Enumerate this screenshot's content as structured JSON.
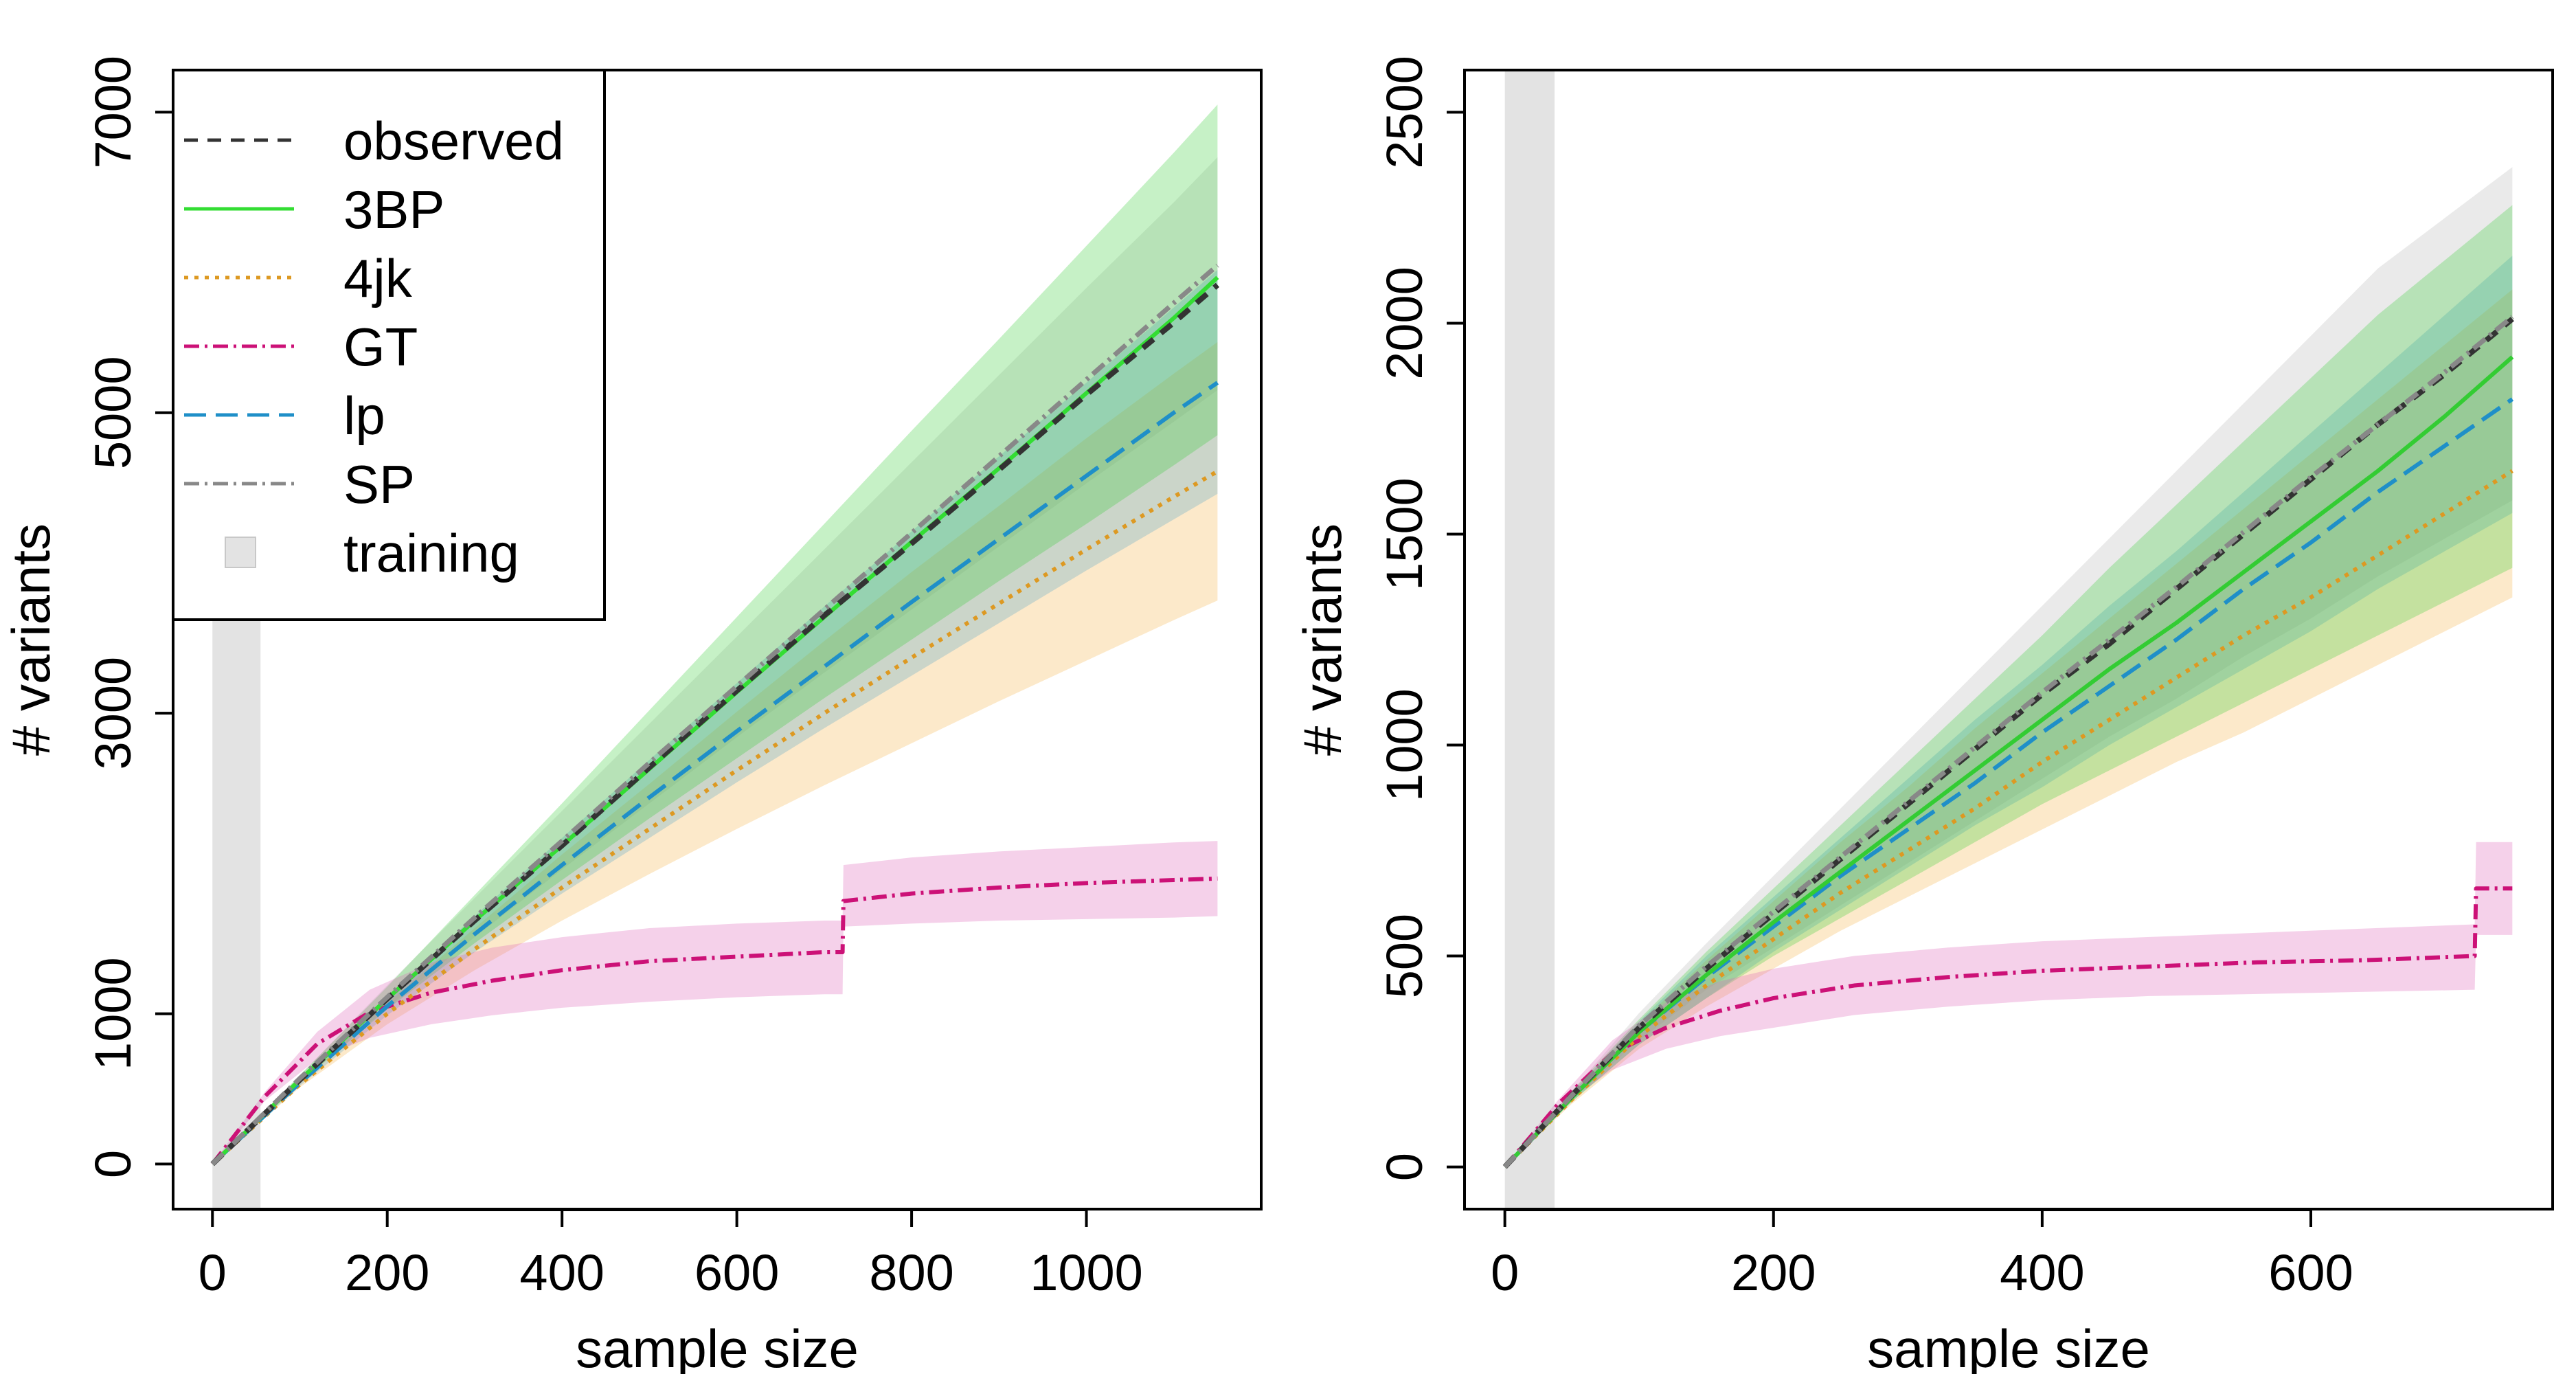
{
  "chart_data": [
    {
      "type": "line",
      "panel": "left",
      "xlabel": "sample size",
      "ylabel": "# variants",
      "xlim": [
        -45,
        1200
      ],
      "ylim": [
        -300,
        7280
      ],
      "xticks": [
        0,
        200,
        400,
        600,
        800,
        1000
      ],
      "yticks": [
        0,
        1000,
        3000,
        5000,
        7000
      ],
      "training_region": [
        0,
        55
      ],
      "x_end": 1150,
      "gt_jump_x": 722,
      "series": [
        {
          "name": "observed",
          "color": "#333333",
          "x": [
            0,
            100,
            200,
            300,
            400,
            500,
            600,
            700,
            800,
            900,
            1000,
            1100,
            1150
          ],
          "y": [
            0,
            560,
            1100,
            1620,
            2120,
            2640,
            3150,
            3650,
            4130,
            4620,
            5120,
            5600,
            5850
          ]
        },
        {
          "name": "3BP",
          "color": "#33dd33",
          "x": [
            0,
            100,
            200,
            300,
            400,
            500,
            600,
            700,
            800,
            900,
            1000,
            1100,
            1150
          ],
          "y": [
            0,
            560,
            1100,
            1620,
            2120,
            2630,
            3140,
            3640,
            4140,
            4630,
            5130,
            5630,
            5900
          ],
          "lower": [
            0,
            540,
            1030,
            1470,
            1890,
            2300,
            2700,
            3100,
            3490,
            3880,
            4260,
            4650,
            4850
          ],
          "upper": [
            0,
            590,
            1180,
            1790,
            2400,
            3020,
            3640,
            4260,
            4880,
            5490,
            6110,
            6730,
            7050
          ]
        },
        {
          "name": "4jk",
          "color": "#dd9922",
          "x": [
            0,
            100,
            200,
            300,
            400,
            500,
            600,
            700,
            800,
            900,
            1000,
            1100,
            1150
          ],
          "y": [
            0,
            530,
            1000,
            1430,
            1840,
            2230,
            2620,
            3000,
            3370,
            3730,
            4090,
            4440,
            4610
          ],
          "lower": [
            0,
            510,
            930,
            1290,
            1620,
            1930,
            2230,
            2520,
            2800,
            3080,
            3350,
            3620,
            3750
          ],
          "upper": [
            0,
            550,
            1070,
            1570,
            2060,
            2530,
            3010,
            3480,
            3940,
            4380,
            4830,
            5260,
            5470
          ]
        },
        {
          "name": "GT",
          "color": "#cc1177",
          "x": [
            0,
            60,
            120,
            180,
            250,
            320,
            400,
            500,
            600,
            700,
            721,
            722,
            800,
            900,
            1000,
            1100,
            1150
          ],
          "y": [
            0,
            450,
            800,
            1010,
            1140,
            1220,
            1290,
            1350,
            1380,
            1410,
            1410,
            1750,
            1800,
            1840,
            1870,
            1890,
            1900
          ],
          "lower": [
            0,
            420,
            700,
            840,
            930,
            990,
            1040,
            1080,
            1110,
            1130,
            1130,
            1580,
            1600,
            1620,
            1630,
            1640,
            1650
          ],
          "upper": [
            0,
            480,
            880,
            1160,
            1340,
            1440,
            1510,
            1570,
            1600,
            1620,
            1620,
            1990,
            2040,
            2080,
            2110,
            2140,
            2150
          ]
        },
        {
          "name": "lp",
          "color": "#1f8fc8",
          "x": [
            0,
            100,
            200,
            300,
            400,
            500,
            600,
            700,
            800,
            900,
            1000,
            1100,
            1150
          ],
          "y": [
            0,
            540,
            1050,
            1530,
            1990,
            2440,
            2880,
            3310,
            3740,
            4160,
            4580,
            5000,
            5200
          ],
          "lower": [
            0,
            520,
            990,
            1410,
            1800,
            2170,
            2540,
            2900,
            3250,
            3600,
            3950,
            4290,
            4460
          ],
          "upper": [
            0,
            560,
            1110,
            1650,
            2170,
            2690,
            3200,
            3710,
            4210,
            4710,
            5200,
            5700,
            5950
          ]
        },
        {
          "name": "SP",
          "color": "#888888",
          "x": [
            0,
            100,
            200,
            300,
            400,
            500,
            600,
            700,
            800,
            900,
            1000,
            1100,
            1150
          ],
          "y": [
            0,
            570,
            1110,
            1640,
            2150,
            2670,
            3180,
            3690,
            4200,
            4710,
            5220,
            5730,
            5980
          ],
          "lower": [
            0,
            540,
            1040,
            1510,
            1960,
            2400,
            2840,
            3270,
            3690,
            4110,
            4530,
            4940,
            5150
          ],
          "upper": [
            0,
            590,
            1190,
            1770,
            2350,
            2930,
            3510,
            4090,
            4670,
            5250,
            5830,
            6400,
            6700
          ]
        }
      ]
    },
    {
      "type": "line",
      "panel": "right",
      "xlabel": "sample size",
      "ylabel": "# variants",
      "xlim": [
        -30,
        780
      ],
      "ylim": [
        -100,
        2600
      ],
      "xticks": [
        0,
        200,
        400,
        600
      ],
      "yticks": [
        0,
        500,
        1000,
        1500,
        2000,
        2500
      ],
      "training_region": [
        0,
        37
      ],
      "x_end": 750,
      "gt_jump_x": 723,
      "series": [
        {
          "name": "observed",
          "color": "#333333",
          "x": [
            0,
            50,
            100,
            150,
            200,
            250,
            300,
            350,
            400,
            450,
            500,
            550,
            600,
            650,
            700,
            750
          ],
          "y": [
            0,
            170,
            330,
            470,
            600,
            730,
            860,
            990,
            1120,
            1240,
            1370,
            1500,
            1630,
            1760,
            1880,
            2010
          ]
        },
        {
          "name": "3BP",
          "color": "#33cc33",
          "x": [
            0,
            50,
            100,
            150,
            200,
            250,
            300,
            350,
            400,
            450,
            500,
            550,
            600,
            650,
            700,
            750
          ],
          "y": [
            0,
            165,
            320,
            455,
            580,
            700,
            820,
            940,
            1060,
            1180,
            1290,
            1410,
            1530,
            1650,
            1780,
            1920
          ],
          "lower": [
            0,
            155,
            290,
            400,
            500,
            590,
            680,
            770,
            860,
            940,
            1020,
            1100,
            1180,
            1260,
            1340,
            1420
          ],
          "upper": [
            0,
            180,
            350,
            510,
            660,
            810,
            960,
            1110,
            1260,
            1420,
            1570,
            1720,
            1870,
            2020,
            2150,
            2280
          ]
        },
        {
          "name": "4jk",
          "color": "#dd9922",
          "x": [
            0,
            50,
            100,
            150,
            200,
            250,
            300,
            350,
            400,
            450,
            500,
            550,
            600,
            650,
            700,
            750
          ],
          "y": [
            0,
            160,
            310,
            430,
            540,
            650,
            750,
            850,
            960,
            1060,
            1160,
            1260,
            1350,
            1450,
            1550,
            1650
          ],
          "lower": [
            0,
            150,
            280,
            380,
            470,
            560,
            640,
            720,
            800,
            880,
            960,
            1030,
            1110,
            1190,
            1270,
            1350
          ],
          "upper": [
            0,
            175,
            340,
            490,
            630,
            770,
            900,
            1040,
            1170,
            1300,
            1430,
            1560,
            1690,
            1820,
            1950,
            2080
          ]
        },
        {
          "name": "GT",
          "color": "#cc1177",
          "x": [
            0,
            40,
            80,
            120,
            160,
            200,
            260,
            330,
            400,
            480,
            560,
            640,
            722,
            723,
            750
          ],
          "y": [
            0,
            150,
            270,
            330,
            370,
            400,
            430,
            450,
            465,
            475,
            485,
            490,
            500,
            660,
            660
          ],
          "lower": [
            0,
            140,
            230,
            280,
            310,
            330,
            360,
            380,
            395,
            405,
            410,
            415,
            420,
            550,
            550
          ],
          "upper": [
            0,
            160,
            300,
            390,
            440,
            470,
            500,
            520,
            535,
            545,
            555,
            565,
            575,
            770,
            770
          ]
        },
        {
          "name": "lp",
          "color": "#1f8fc8",
          "x": [
            0,
            50,
            100,
            150,
            200,
            250,
            300,
            350,
            400,
            450,
            500,
            550,
            600,
            650,
            700,
            750
          ],
          "y": [
            0,
            165,
            320,
            450,
            570,
            690,
            800,
            910,
            1030,
            1140,
            1250,
            1370,
            1480,
            1600,
            1710,
            1820
          ],
          "lower": [
            0,
            155,
            290,
            400,
            510,
            610,
            710,
            810,
            900,
            1000,
            1090,
            1180,
            1270,
            1370,
            1460,
            1550
          ],
          "upper": [
            0,
            175,
            345,
            500,
            640,
            780,
            920,
            1060,
            1190,
            1330,
            1460,
            1600,
            1740,
            1880,
            2020,
            2160
          ]
        },
        {
          "name": "SP",
          "color": "#888888",
          "x": [
            0,
            50,
            100,
            150,
            200,
            250,
            300,
            350,
            400,
            450,
            500,
            550,
            600,
            650,
            700,
            750
          ],
          "y": [
            0,
            170,
            335,
            475,
            605,
            735,
            865,
            995,
            1125,
            1250,
            1375,
            1505,
            1635,
            1760,
            1885,
            2015
          ],
          "lower": [
            0,
            160,
            300,
            420,
            520,
            620,
            720,
            820,
            920,
            1020,
            1110,
            1210,
            1300,
            1400,
            1490,
            1580
          ],
          "upper": [
            0,
            180,
            365,
            530,
            690,
            850,
            1010,
            1170,
            1330,
            1490,
            1650,
            1810,
            1970,
            2130,
            2250,
            2370
          ]
        }
      ]
    }
  ],
  "legend": {
    "items": [
      {
        "label": "observed",
        "color": "#333333",
        "dash": "20,14",
        "width": 5
      },
      {
        "label": "3BP",
        "color": "#33dd33",
        "dash": "",
        "width": 5
      },
      {
        "label": "4jk",
        "color": "#dd9922",
        "dash": "6,9",
        "width": 5
      },
      {
        "label": "GT",
        "color": "#cc1177",
        "dash": "22,8,4,8",
        "width": 5
      },
      {
        "label": "lp",
        "color": "#1f8fc8",
        "dash": "32,14",
        "width": 5
      },
      {
        "label": "SP",
        "color": "#888888",
        "dash": "22,8,4,8",
        "width": 5
      },
      {
        "label": "training",
        "color": "#e3e3e3",
        "dash": "",
        "width": 0
      }
    ]
  },
  "band_colors": {
    "3BP": "#33cc33",
    "4jk": "#f5b040",
    "GT": "#dd66bb",
    "lp": "#1f8fc8",
    "SP": "#bbbbbb"
  },
  "band_opacity": {
    "3BP": 0.28,
    "4jk": 0.28,
    "GT": 0.3,
    "lp": 0.22,
    "SP": 0.3
  }
}
